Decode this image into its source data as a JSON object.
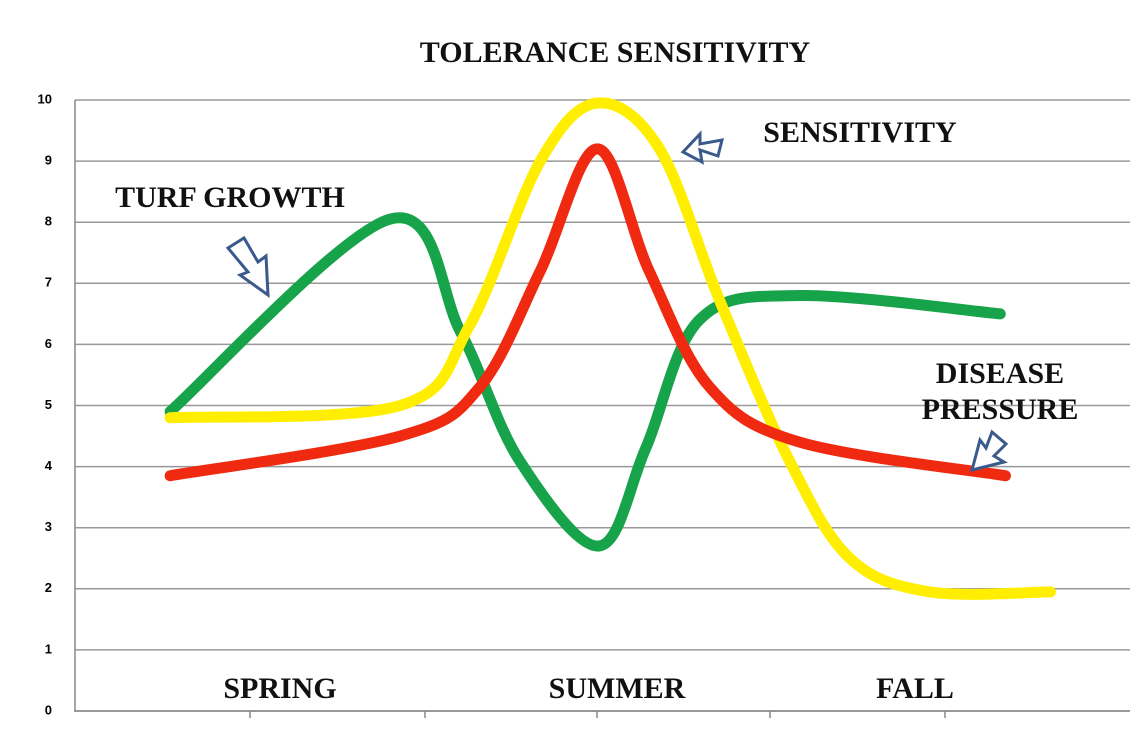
{
  "chart_data": {
    "type": "line",
    "title": "TOLERANCE SENSITIVITY",
    "xlim": [
      0,
      6.1
    ],
    "ylim": [
      0,
      10
    ],
    "yticks": [
      0,
      1,
      2,
      3,
      4,
      5,
      6,
      7,
      8,
      9,
      10
    ],
    "grid": true,
    "annotations": [
      "SPRING",
      "SUMMER",
      "FALL"
    ],
    "series": [
      {
        "name": "TURF GROWTH",
        "color": "#17a34a",
        "x": [
          0.55,
          1.82,
          2.23,
          2.57,
          3.03,
          3.3,
          3.61,
          4.19,
          5.35
        ],
        "values": [
          4.9,
          8.05,
          6.2,
          4.1,
          2.7,
          4.3,
          6.4,
          6.8,
          6.5
        ]
      },
      {
        "name": "SENSITIVITY",
        "color": "#ffee00",
        "x": [
          0.55,
          1.88,
          2.28,
          2.69,
          3.02,
          3.38,
          3.73,
          4.13,
          4.48,
          4.94,
          5.64
        ],
        "values": [
          4.8,
          5.0,
          6.3,
          9.0,
          9.95,
          9.2,
          6.7,
          4.1,
          2.5,
          1.95,
          1.95
        ]
      },
      {
        "name": "DISEASE PRESSURE",
        "color": "#f02a10",
        "x": [
          0.55,
          1.88,
          2.34,
          2.69,
          3.02,
          3.32,
          3.67,
          4.19,
          5.38
        ],
        "values": [
          3.85,
          4.5,
          5.3,
          7.2,
          9.2,
          7.2,
          5.3,
          4.4,
          3.85
        ]
      }
    ]
  }
}
